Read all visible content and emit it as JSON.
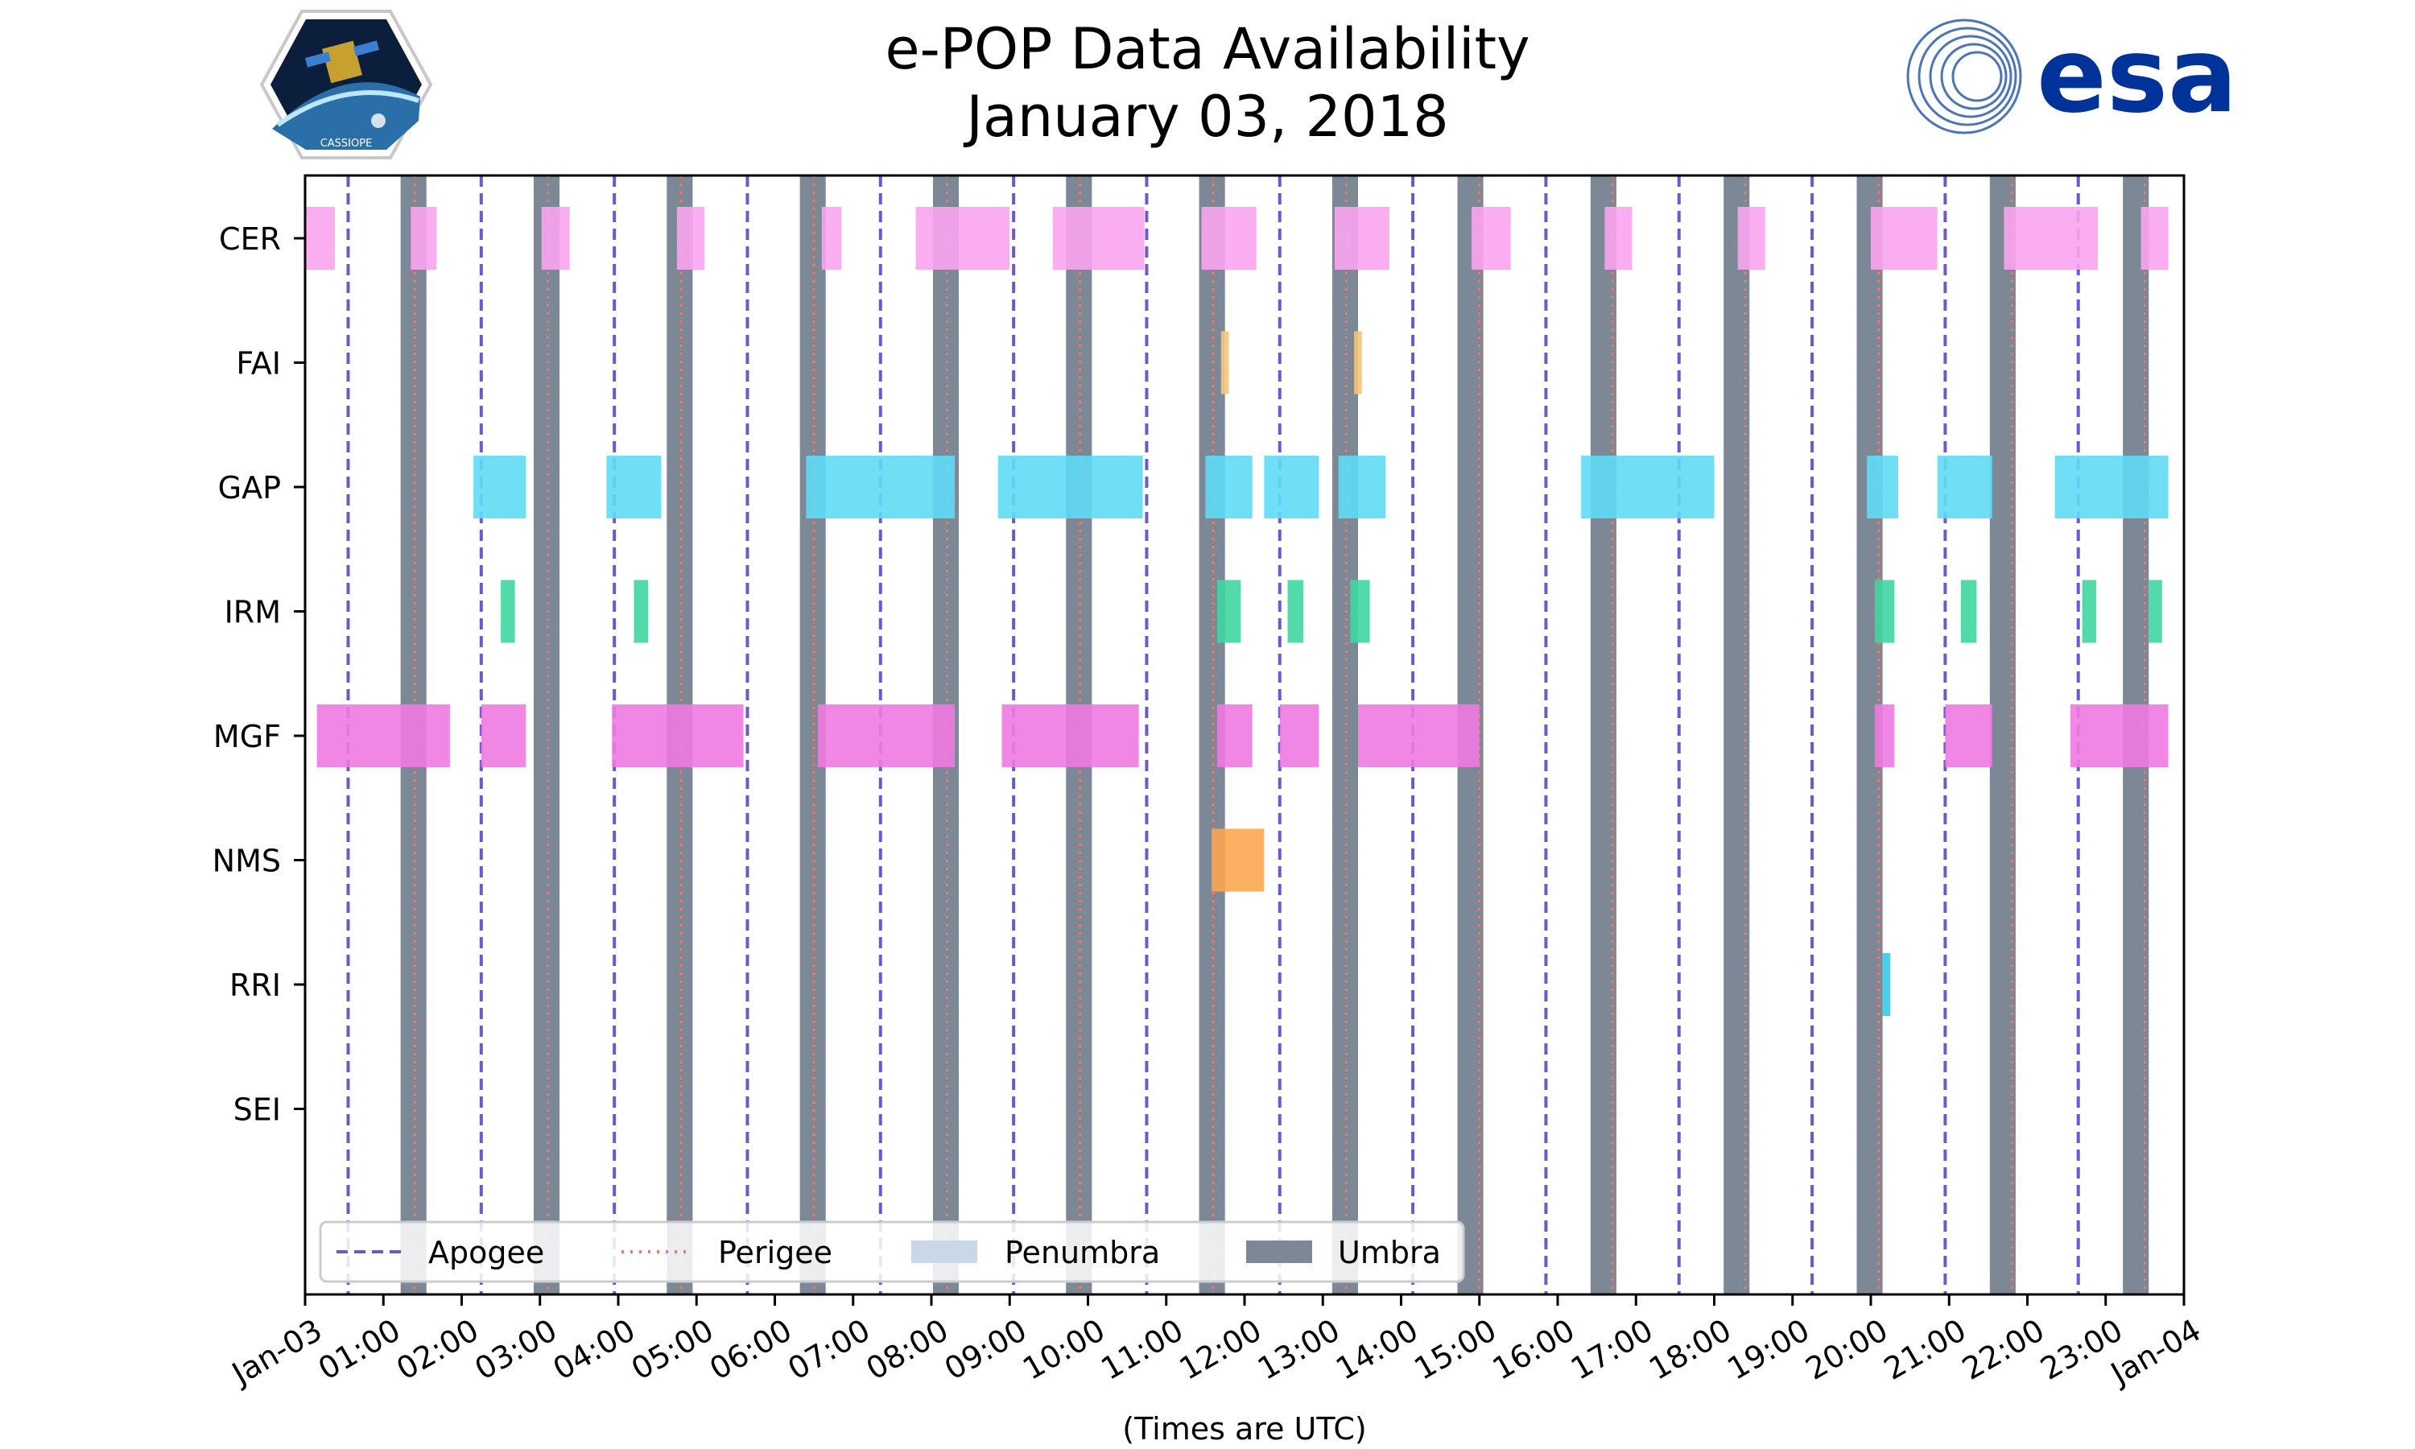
{
  "title": {
    "line1": "e-POP Data Availability",
    "line2": "January 03, 2018"
  },
  "logos": {
    "left": {
      "icon": "cassiope-mission-logo",
      "text": "CASSIOPE"
    },
    "right": {
      "icon": "esa-logo",
      "text": "esa"
    }
  },
  "chart_data": {
    "type": "timeline",
    "title": "e-POP Data Availability January 03, 2018",
    "xlabel": "(Times are UTC)",
    "ylabel": "",
    "x_range_hours": [
      0,
      24
    ],
    "x_ticks": [
      "Jan-03",
      "01:00",
      "02:00",
      "03:00",
      "04:00",
      "05:00",
      "06:00",
      "07:00",
      "08:00",
      "09:00",
      "10:00",
      "11:00",
      "12:00",
      "13:00",
      "14:00",
      "15:00",
      "16:00",
      "17:00",
      "18:00",
      "19:00",
      "20:00",
      "21:00",
      "22:00",
      "23:00",
      "Jan-04"
    ],
    "instruments": [
      "CER",
      "FAI",
      "GAP",
      "IRM",
      "MGF",
      "NMS",
      "RRI",
      "SEI"
    ],
    "colors": {
      "CER": "#f9a4ee",
      "FAI": "#f5c87a",
      "GAP": "#5fdcf5",
      "IRM": "#3fd6a0",
      "MGF": "#f07ae2",
      "NMS": "#f9a650",
      "RRI": "#36cbed",
      "SEI": "#999999",
      "apogee": "#6a5acd",
      "perigee": "#f07a6a",
      "penumbra": "#c9d8e8",
      "umbra": "#7c8896"
    },
    "intervals_hours": {
      "CER": [
        [
          0.0,
          0.38
        ],
        [
          1.35,
          1.68
        ],
        [
          3.02,
          3.38
        ],
        [
          4.75,
          5.1
        ],
        [
          6.6,
          6.85
        ],
        [
          7.8,
          9.0
        ],
        [
          9.55,
          10.72
        ],
        [
          11.45,
          12.15
        ],
        [
          13.15,
          13.85
        ],
        [
          14.9,
          15.4
        ],
        [
          16.6,
          16.95
        ],
        [
          18.3,
          18.65
        ],
        [
          20.0,
          20.85
        ],
        [
          21.7,
          22.9
        ],
        [
          23.45,
          23.8
        ]
      ],
      "FAI": [
        [
          11.7,
          11.8
        ],
        [
          13.4,
          13.5
        ]
      ],
      "GAP": [
        [
          2.15,
          2.82
        ],
        [
          3.85,
          4.55
        ],
        [
          6.4,
          8.3
        ],
        [
          8.85,
          10.7
        ],
        [
          11.5,
          12.1
        ],
        [
          12.25,
          12.95
        ],
        [
          13.2,
          13.8
        ],
        [
          16.3,
          18.0
        ],
        [
          19.95,
          20.35
        ],
        [
          20.85,
          21.55
        ],
        [
          22.35,
          23.8
        ]
      ],
      "IRM": [
        [
          2.5,
          2.68
        ],
        [
          4.2,
          4.38
        ],
        [
          11.65,
          11.95
        ],
        [
          12.55,
          12.75
        ],
        [
          13.35,
          13.6
        ],
        [
          20.05,
          20.3
        ],
        [
          21.15,
          21.35
        ],
        [
          22.7,
          22.88
        ],
        [
          23.55,
          23.72
        ]
      ],
      "MGF": [
        [
          0.15,
          1.85
        ],
        [
          2.25,
          2.82
        ],
        [
          3.92,
          5.6
        ],
        [
          6.55,
          8.3
        ],
        [
          8.9,
          10.65
        ],
        [
          11.65,
          12.1
        ],
        [
          12.45,
          12.95
        ],
        [
          13.45,
          15.0
        ],
        [
          20.05,
          20.3
        ],
        [
          20.95,
          21.55
        ],
        [
          22.55,
          23.8
        ]
      ],
      "NMS": [
        [
          11.58,
          12.25
        ]
      ],
      "RRI": [
        [
          20.15,
          20.25
        ]
      ],
      "SEI": []
    },
    "apogee_hours": [
      0.55,
      2.25,
      3.95,
      5.65,
      7.35,
      9.05,
      10.75,
      12.45,
      14.15,
      15.85,
      17.55,
      19.25,
      20.95,
      22.65
    ],
    "perigee_hours": [
      1.4,
      3.1,
      4.8,
      6.5,
      8.2,
      9.9,
      11.6,
      13.3,
      15.0,
      16.7,
      18.4,
      20.1,
      21.8,
      23.5
    ],
    "umbra_hours": [
      [
        1.22,
        1.55
      ],
      [
        2.92,
        3.25
      ],
      [
        4.62,
        4.95
      ],
      [
        6.32,
        6.65
      ],
      [
        8.02,
        8.35
      ],
      [
        9.72,
        10.05
      ],
      [
        11.42,
        11.75
      ],
      [
        13.12,
        13.45
      ],
      [
        14.72,
        15.05
      ],
      [
        16.42,
        16.75
      ],
      [
        18.12,
        18.45
      ],
      [
        19.82,
        20.15
      ],
      [
        21.52,
        21.85
      ],
      [
        23.22,
        23.55
      ]
    ],
    "legend": {
      "position": "bottom-left",
      "entries": [
        "Apogee",
        "Perigee",
        "Penumbra",
        "Umbra"
      ]
    }
  }
}
